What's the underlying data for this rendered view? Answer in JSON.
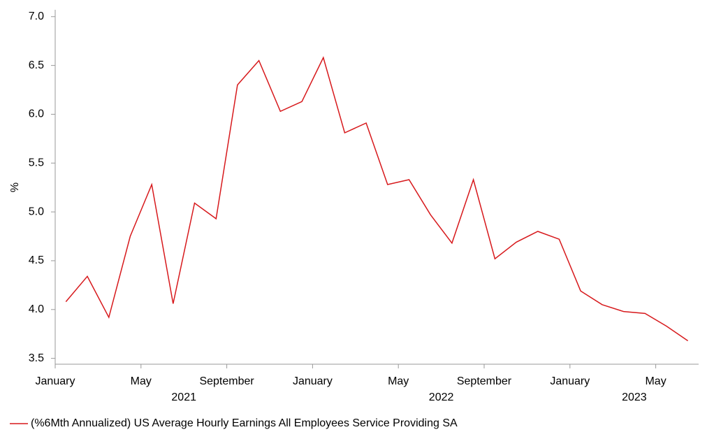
{
  "chart_data": {
    "type": "line",
    "categories": [
      "January",
      null,
      null,
      null,
      "May",
      null,
      null,
      null,
      "September",
      null,
      null,
      null,
      "January",
      null,
      null,
      null,
      "May",
      null,
      null,
      null,
      "September",
      null,
      null,
      null,
      "January",
      null,
      null,
      null,
      "May",
      null
    ],
    "year_labels": [
      "2021",
      "2022",
      "2023"
    ],
    "y_label": "%",
    "series": [
      {
        "name": "(%6Mth Annualized) US Average Hourly Earnings All Employees Service Providing SA",
        "color": "#d7191c",
        "values": [
          4.08,
          4.34,
          3.92,
          4.75,
          5.28,
          4.06,
          5.09,
          4.93,
          6.3,
          6.55,
          6.03,
          6.13,
          6.58,
          5.81,
          5.91,
          5.28,
          5.33,
          4.97,
          4.68,
          5.33,
          4.52,
          4.69,
          4.8,
          4.72,
          4.19,
          4.05,
          3.98,
          3.96,
          3.83,
          3.68
        ]
      }
    ],
    "ylim": [
      3.44,
      7.07
    ],
    "yticks": [
      {
        "value": 3.5,
        "label": "3.5"
      },
      {
        "value": 4,
        "label": "4.0"
      },
      {
        "value": 4.5,
        "label": "4.5"
      },
      {
        "value": 5,
        "label": "5.0"
      },
      {
        "value": 5.5,
        "label": "5.5"
      },
      {
        "value": 6,
        "label": "6.0"
      },
      {
        "value": 6.5,
        "label": "6.5"
      },
      {
        "value": 7,
        "label": "7.0"
      }
    ],
    "grid": false
  }
}
